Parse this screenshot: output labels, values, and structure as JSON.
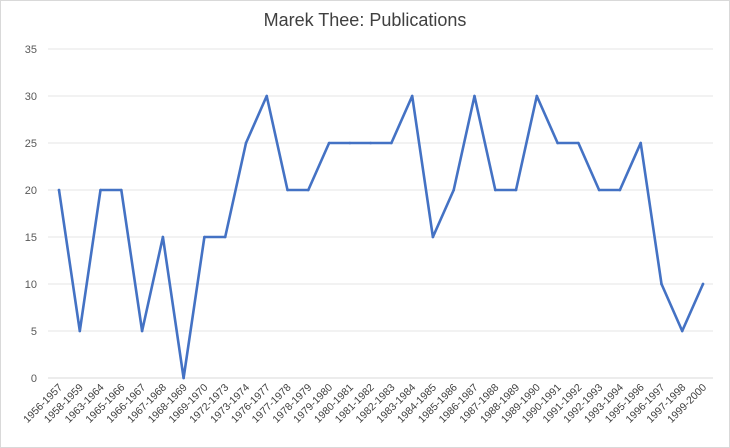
{
  "chart_data": {
    "type": "line",
    "title": "Marek Thee: Publications",
    "xlabel": "",
    "ylabel": "",
    "ylim": [
      0,
      35
    ],
    "yticks": [
      0,
      5,
      10,
      15,
      20,
      25,
      30,
      35
    ],
    "grid": true,
    "legend": "none",
    "line_color": "#4472C4",
    "categories": [
      "1956-1957",
      "1958-1959",
      "1963-1964",
      "1965-1966",
      "1966-1967",
      "1967-1968",
      "1968-1969",
      "1969-1970",
      "1972-1973",
      "1973-1974",
      "1976-1977",
      "1977-1978",
      "1978-1979",
      "1979-1980",
      "1980-1981",
      "1981-1982",
      "1982-1983",
      "1983-1984",
      "1984-1985",
      "1985-1986",
      "1986-1987",
      "1987-1988",
      "1988-1989",
      "1989-1990",
      "1990-1991",
      "1991-1992",
      "1992-1993",
      "1993-1994",
      "1995-1996",
      "1996-1997",
      "1997-1998",
      "1999-2000"
    ],
    "values": [
      20,
      5,
      20,
      20,
      5,
      15,
      0,
      15,
      15,
      25,
      30,
      20,
      20,
      25,
      25,
      25,
      25,
      30,
      15,
      20,
      30,
      20,
      20,
      30,
      25,
      25,
      20,
      20,
      25,
      10,
      5,
      10
    ]
  }
}
